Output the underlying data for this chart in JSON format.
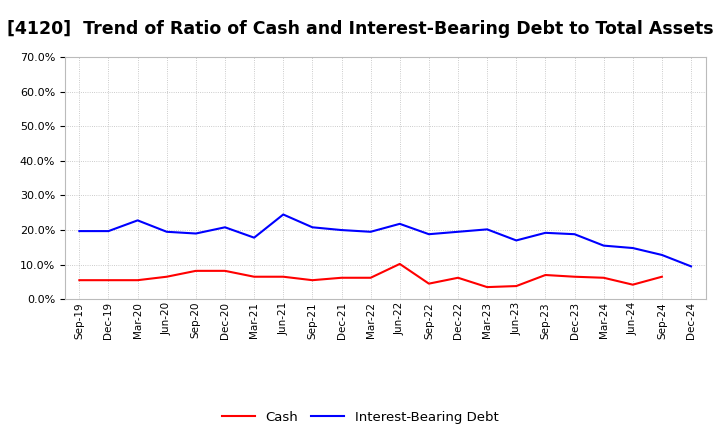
{
  "title": "[4120]  Trend of Ratio of Cash and Interest-Bearing Debt to Total Assets",
  "x_labels": [
    "Sep-19",
    "Dec-19",
    "Mar-20",
    "Jun-20",
    "Sep-20",
    "Dec-20",
    "Mar-21",
    "Jun-21",
    "Sep-21",
    "Dec-21",
    "Mar-22",
    "Jun-22",
    "Sep-22",
    "Dec-22",
    "Mar-23",
    "Jun-23",
    "Sep-23",
    "Dec-23",
    "Mar-24",
    "Jun-24",
    "Sep-24",
    "Dec-24"
  ],
  "cash": [
    0.055,
    0.055,
    0.055,
    0.065,
    0.082,
    0.082,
    0.065,
    0.065,
    0.055,
    0.062,
    0.062,
    0.102,
    0.045,
    0.062,
    0.035,
    0.038,
    0.07,
    0.065,
    0.062,
    0.042,
    0.065,
    null
  ],
  "ibd": [
    0.197,
    0.197,
    0.228,
    0.195,
    0.19,
    0.208,
    0.178,
    0.245,
    0.208,
    0.2,
    0.195,
    0.218,
    0.188,
    0.195,
    0.202,
    0.17,
    0.192,
    0.188,
    0.155,
    0.148,
    0.128,
    0.095
  ],
  "ylim": [
    0.0,
    0.7
  ],
  "yticks": [
    0.0,
    0.1,
    0.2,
    0.3,
    0.4,
    0.5,
    0.6,
    0.7
  ],
  "cash_color": "#FF0000",
  "ibd_color": "#0000FF",
  "bg_color": "#FFFFFF",
  "plot_bg_color": "#FFFFFF",
  "grid_color": "#AAAAAA",
  "title_fontsize": 12.5,
  "legend_cash": "Cash",
  "legend_ibd": "Interest-Bearing Debt"
}
